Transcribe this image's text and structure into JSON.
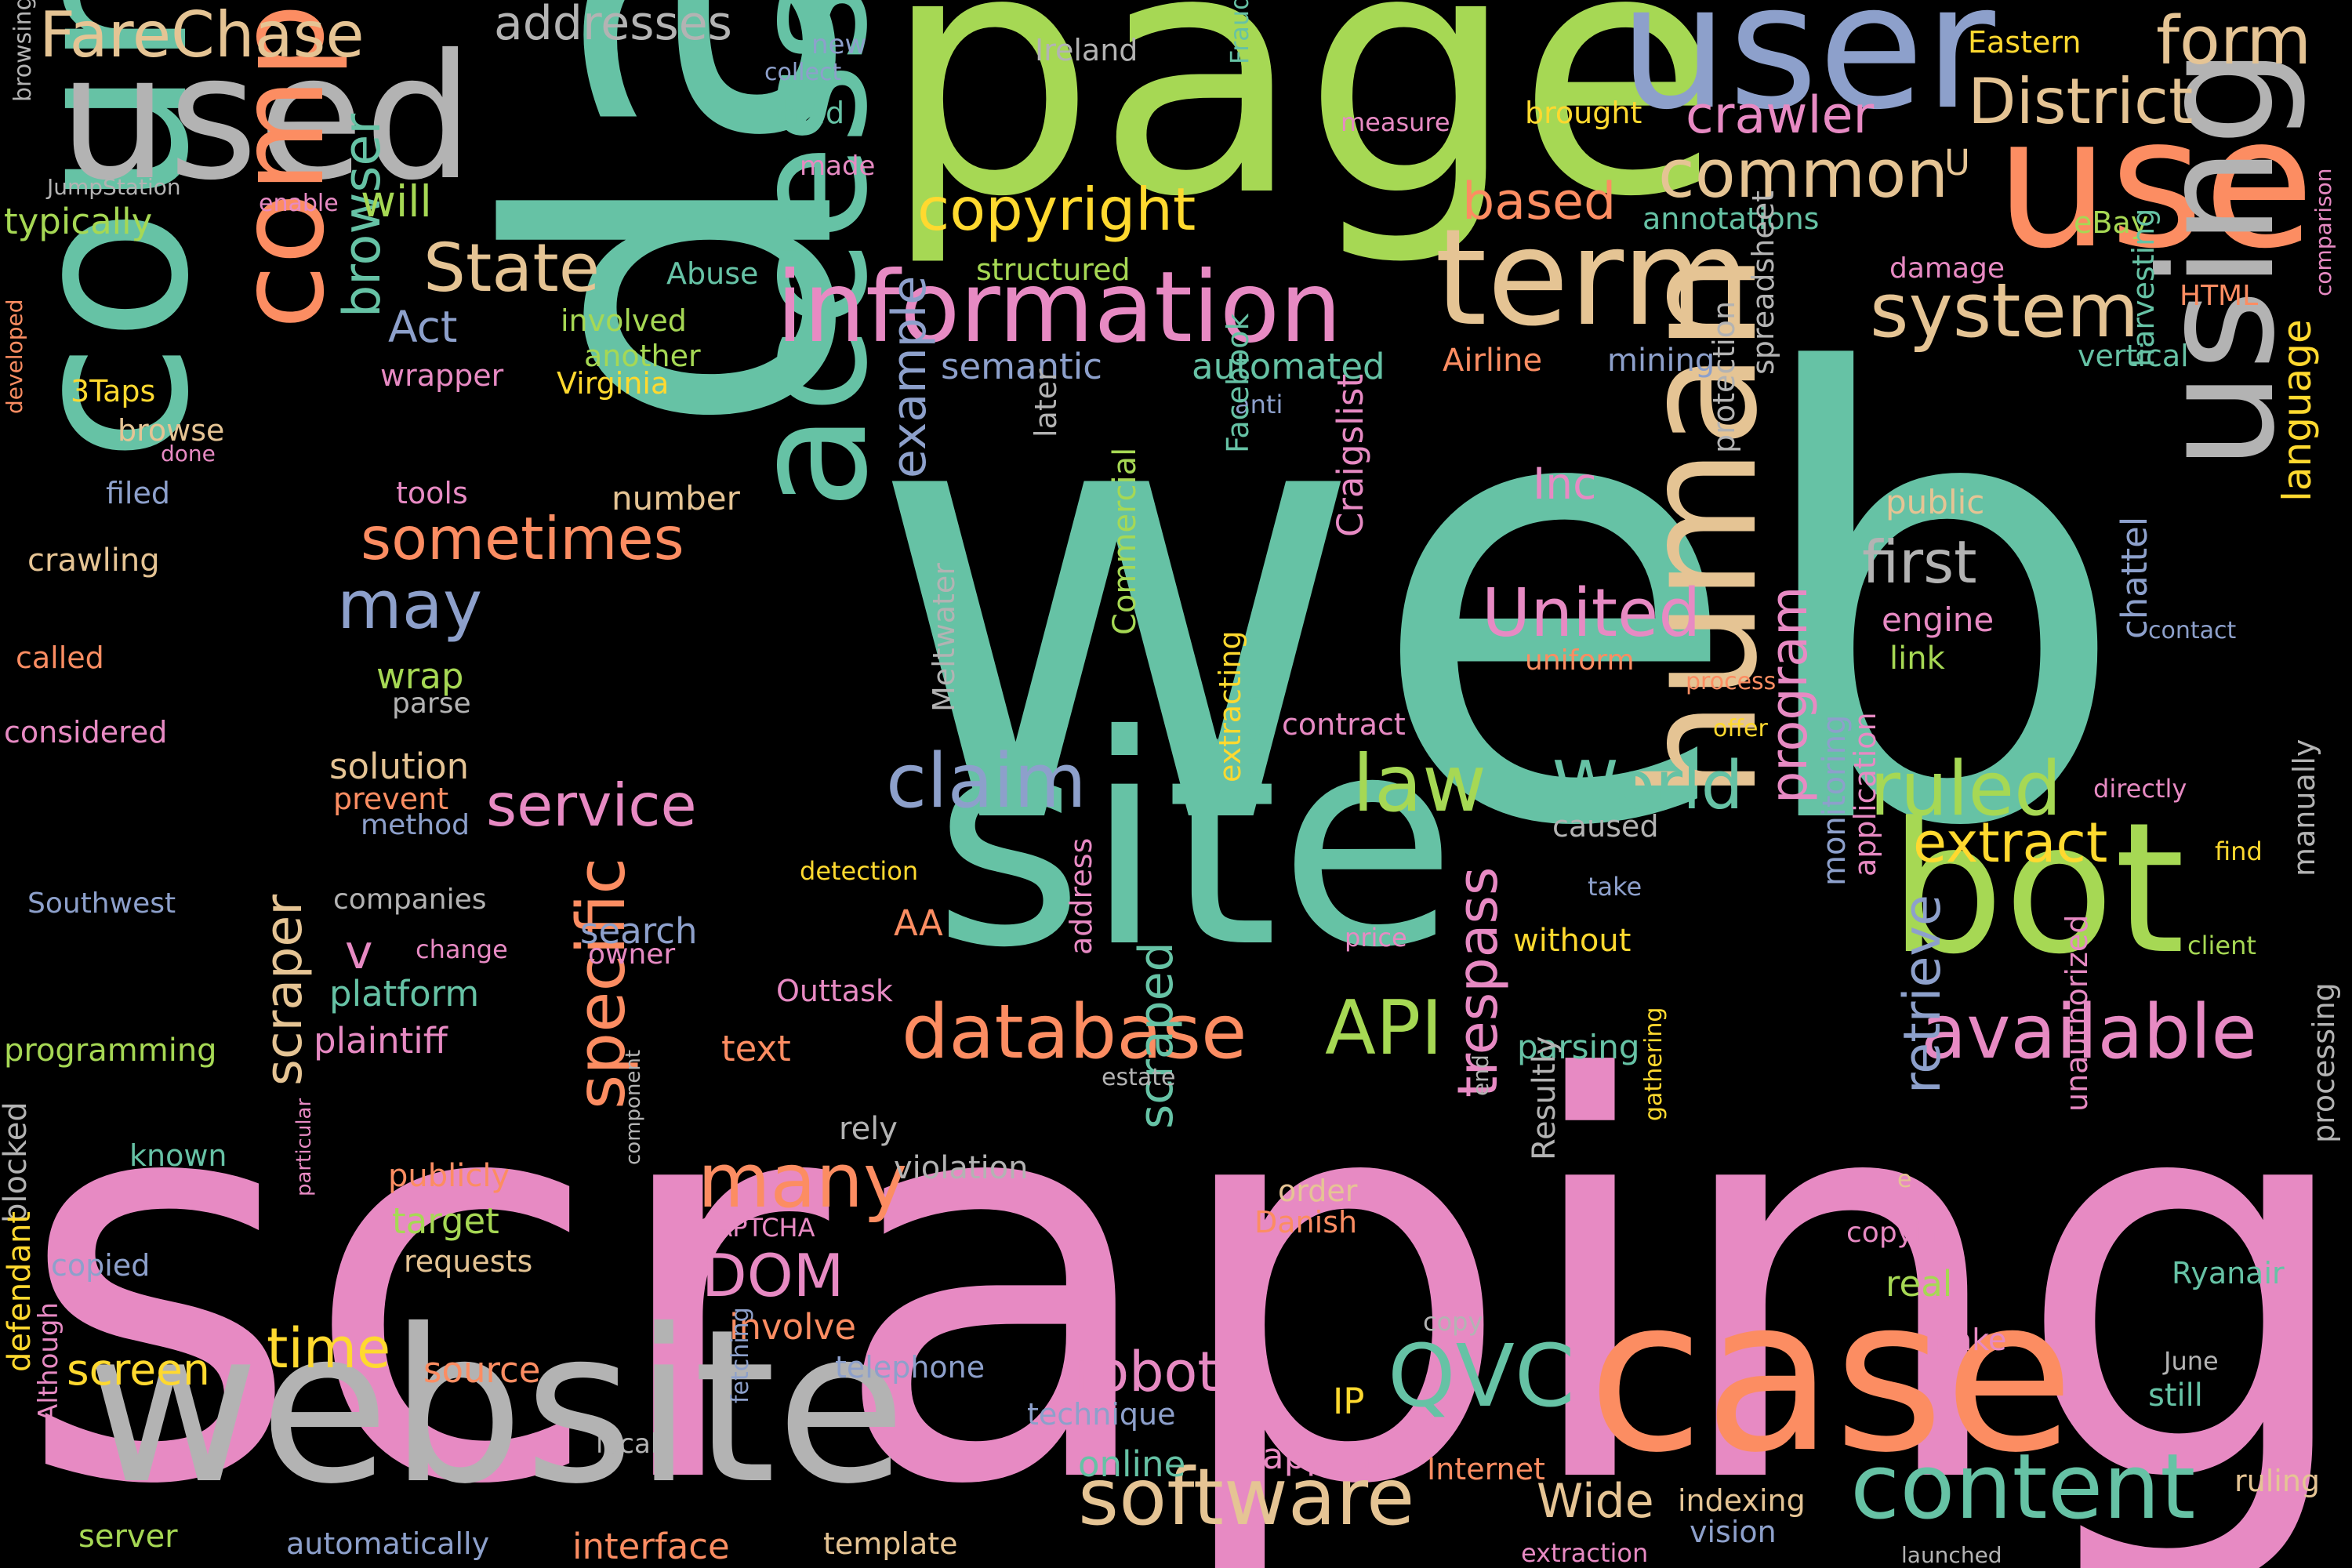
{
  "words": [
    {
      "text": "web",
      "w": 3.0,
      "color": "#66c2a5"
    },
    {
      "text": "scraping",
      "w": 2.6,
      "color": "#e78ac3"
    },
    {
      "text": "data",
      "w": 2.1,
      "color": "#66c2a5",
      "vertical": true
    },
    {
      "text": "page",
      "w": 1.7,
      "color": "#a6d854"
    },
    {
      "text": "site",
      "w": 1.4,
      "color": "#66c2a5"
    },
    {
      "text": "website",
      "w": 1.05,
      "color": "#b3b3b3"
    },
    {
      "text": "court",
      "w": 1.1,
      "color": "#66c2a5",
      "vertical": true
    },
    {
      "text": "case",
      "w": 1.05,
      "color": "#fc8d62"
    },
    {
      "text": "use",
      "w": 0.9,
      "color": "#fc8d62"
    },
    {
      "text": "user",
      "w": 0.9,
      "color": "#8da0cb"
    },
    {
      "text": "used",
      "w": 0.9,
      "color": "#b3b3b3"
    },
    {
      "text": "bot",
      "w": 0.9,
      "color": "#a6d854"
    },
    {
      "text": "access",
      "w": 0.85,
      "color": "#66c2a5",
      "vertical": true
    },
    {
      "text": "computer",
      "w": 0.72,
      "color": "#fc8d62",
      "vertical": true
    },
    {
      "text": "human",
      "w": 0.85,
      "color": "#e5c494",
      "vertical": true
    },
    {
      "text": "using",
      "w": 0.8,
      "color": "#b3b3b3",
      "vertical": true
    },
    {
      "text": "term",
      "w": 0.75,
      "color": "#e5c494"
    },
    {
      "text": "information",
      "w": 0.62,
      "color": "#e78ac3"
    },
    {
      "text": "content",
      "w": 0.62,
      "color": "#66c2a5"
    },
    {
      "text": "software",
      "w": 0.55,
      "color": "#e5c494"
    },
    {
      "text": "available",
      "w": 0.55,
      "color": "#e78ac3"
    },
    {
      "text": "database",
      "w": 0.55,
      "color": "#fc8d62"
    },
    {
      "text": "claim",
      "w": 0.55,
      "color": "#8da0cb"
    },
    {
      "text": "law",
      "w": 0.55,
      "color": "#a6d854"
    },
    {
      "text": "ruled",
      "w": 0.55,
      "color": "#a6d854"
    },
    {
      "text": "many",
      "w": 0.55,
      "color": "#fc8d62"
    },
    {
      "text": "API",
      "w": 0.55,
      "color": "#a6d854"
    },
    {
      "text": "QVC",
      "w": 0.55,
      "color": "#66c2a5"
    },
    {
      "text": "system",
      "w": 0.55,
      "color": "#e5c494"
    },
    {
      "text": "specific",
      "w": 0.5,
      "color": "#fc8d62",
      "vertical": true
    },
    {
      "text": "FareChase",
      "w": 0.45,
      "color": "#e5c494"
    },
    {
      "text": "District",
      "w": 0.45,
      "color": "#e5c494"
    },
    {
      "text": "form",
      "w": 0.45,
      "color": "#e5c494"
    },
    {
      "text": "common",
      "w": 0.45,
      "color": "#e5c494"
    },
    {
      "text": "State",
      "w": 0.45,
      "color": "#e5c494"
    },
    {
      "text": "World",
      "w": 0.45,
      "color": "#66c2a5"
    },
    {
      "text": "United",
      "w": 0.45,
      "color": "#e78ac3"
    },
    {
      "text": "may",
      "w": 0.45,
      "color": "#8da0cb"
    },
    {
      "text": "sometimes",
      "w": 0.45,
      "color": "#fc8d62"
    },
    {
      "text": "service",
      "w": 0.45,
      "color": "#e78ac3"
    },
    {
      "text": "copyright",
      "w": 0.45,
      "color": "#ffd92f"
    },
    {
      "text": "addresses",
      "w": 0.4,
      "color": "#b3b3b3"
    },
    {
      "text": "crawler",
      "w": 0.4,
      "color": "#e78ac3"
    },
    {
      "text": "based",
      "w": 0.4,
      "color": "#fc8d62"
    },
    {
      "text": "extract",
      "w": 0.45,
      "color": "#ffd92f"
    },
    {
      "text": "first",
      "w": 0.45,
      "color": "#b3b3b3"
    },
    {
      "text": "time",
      "w": 0.45,
      "color": "#ffd92f"
    },
    {
      "text": "robot",
      "w": 0.45,
      "color": "#e78ac3"
    },
    {
      "text": "DOM",
      "w": 0.45,
      "color": "#e78ac3"
    },
    {
      "text": "scraper",
      "w": 0.45,
      "color": "#e5c494",
      "vertical": true
    },
    {
      "text": "browser",
      "w": 0.4,
      "color": "#66c2a5",
      "vertical": true
    },
    {
      "text": "trespass",
      "w": 0.4,
      "color": "#e78ac3",
      "vertical": true
    },
    {
      "text": "program",
      "w": 0.4,
      "color": "#e78ac3",
      "vertical": true
    },
    {
      "text": "retrieve",
      "w": 0.4,
      "color": "#8da0cb",
      "vertical": true
    },
    {
      "text": "example",
      "w": 0.4,
      "color": "#8da0cb",
      "vertical": true
    },
    {
      "text": "scraped",
      "w": 0.4,
      "color": "#66c2a5",
      "vertical": true
    },
    {
      "text": "language",
      "w": 0.35,
      "color": "#ffd92f",
      "vertical": true
    },
    {
      "text": "Wide",
      "w": 0.4,
      "color": "#e5c494"
    },
    {
      "text": "screen",
      "w": 0.35,
      "color": "#ffd92f"
    },
    {
      "text": "will",
      "w": 0.35,
      "color": "#a6d854"
    },
    {
      "text": "Act",
      "w": 0.35,
      "color": "#8da0cb"
    },
    {
      "text": "Inc",
      "w": 0.35,
      "color": "#e78ac3"
    },
    {
      "text": "v",
      "w": 0.35,
      "color": "#e78ac3"
    },
    {
      "text": "IP",
      "w": 0.35,
      "color": "#ffd92f"
    },
    {
      "text": "U",
      "w": 0.3,
      "color": "#e5c494"
    },
    {
      "text": "platform",
      "w": 0.3,
      "color": "#66c2a5"
    },
    {
      "text": "plaintiff",
      "w": 0.3,
      "color": "#e78ac3"
    },
    {
      "text": "solution",
      "w": 0.3,
      "color": "#e5c494"
    },
    {
      "text": "automated",
      "w": 0.3,
      "color": "#66c2a5"
    },
    {
      "text": "semantic",
      "w": 0.3,
      "color": "#8da0cb"
    },
    {
      "text": "typically",
      "w": 0.28,
      "color": "#a6d854"
    },
    {
      "text": "involve",
      "w": 0.3,
      "color": "#fc8d62"
    },
    {
      "text": "source",
      "w": 0.3,
      "color": "#fc8d62"
    },
    {
      "text": "online",
      "w": 0.3,
      "color": "#66c2a5"
    },
    {
      "text": "appeal",
      "w": 0.3,
      "color": "#e78ac3"
    },
    {
      "text": "interface",
      "w": 0.3,
      "color": "#fc8d62"
    },
    {
      "text": "Airline",
      "w": 0.28,
      "color": "#fc8d62"
    },
    {
      "text": "mining",
      "w": 0.28,
      "color": "#8da0cb"
    },
    {
      "text": "crawling",
      "w": 0.28,
      "color": "#e5c494"
    },
    {
      "text": "search",
      "w": 0.3,
      "color": "#8da0cb"
    },
    {
      "text": "target",
      "w": 0.3,
      "color": "#a6d854"
    },
    {
      "text": "AA",
      "w": 0.3,
      "color": "#fc8d62"
    },
    {
      "text": "text",
      "w": 0.3,
      "color": "#fc8d62"
    },
    {
      "text": "public",
      "w": 0.28,
      "color": "#e5c494"
    },
    {
      "text": "engine",
      "w": 0.28,
      "color": "#e78ac3"
    },
    {
      "text": "link",
      "w": 0.28,
      "color": "#a6d854"
    },
    {
      "text": "wrap",
      "w": 0.28,
      "color": "#a6d854"
    },
    {
      "text": "tools",
      "w": 0.25,
      "color": "#e78ac3"
    },
    {
      "text": "number",
      "w": 0.28,
      "color": "#e5c494"
    },
    {
      "text": "vertical",
      "w": 0.25,
      "color": "#66c2a5"
    },
    {
      "text": "structured",
      "w": 0.25,
      "color": "#a6d854"
    },
    {
      "text": "annotations",
      "w": 0.25,
      "color": "#66c2a5"
    },
    {
      "text": "eBay",
      "w": 0.25,
      "color": "#a6d854"
    },
    {
      "text": "Eastern",
      "w": 0.25,
      "color": "#ffd92f"
    },
    {
      "text": "brought",
      "w": 0.25,
      "color": "#ffd92f"
    },
    {
      "text": "involved",
      "w": 0.25,
      "color": "#a6d854"
    },
    {
      "text": "another",
      "w": 0.25,
      "color": "#a6d854"
    },
    {
      "text": "Virginia",
      "w": 0.25,
      "color": "#ffd92f"
    },
    {
      "text": "3Taps",
      "w": 0.25,
      "color": "#ffd92f"
    },
    {
      "text": "browse",
      "w": 0.25,
      "color": "#e5c494"
    },
    {
      "text": "filed",
      "w": 0.25,
      "color": "#8da0cb"
    },
    {
      "text": "Abuse",
      "w": 0.25,
      "color": "#66c2a5"
    },
    {
      "text": "wrapper",
      "w": 0.25,
      "color": "#e78ac3"
    },
    {
      "text": "held",
      "w": 0.25,
      "color": "#66c2a5"
    },
    {
      "text": "Ireland",
      "w": 0.25,
      "color": "#b3b3b3"
    },
    {
      "text": "new",
      "w": 0.25,
      "color": "#8da0cb"
    },
    {
      "text": "made",
      "w": 0.25,
      "color": "#e78ac3"
    },
    {
      "text": "HTML",
      "w": 0.25,
      "color": "#fc8d62"
    },
    {
      "text": "damage",
      "w": 0.25,
      "color": "#e78ac3"
    },
    {
      "text": "uniform",
      "w": 0.25,
      "color": "#fc8d62"
    },
    {
      "text": "called",
      "w": 0.25,
      "color": "#fc8d62"
    },
    {
      "text": "considered",
      "w": 0.25,
      "color": "#e78ac3"
    },
    {
      "text": "prevent",
      "w": 0.25,
      "color": "#fc8d62"
    },
    {
      "text": "method",
      "w": 0.25,
      "color": "#8da0cb"
    },
    {
      "text": "parse",
      "w": 0.25,
      "color": "#b3b3b3"
    },
    {
      "text": "Southwest",
      "w": 0.25,
      "color": "#8da0cb"
    },
    {
      "text": "companies",
      "w": 0.25,
      "color": "#b3b3b3"
    },
    {
      "text": "change",
      "w": 0.22,
      "color": "#e78ac3"
    },
    {
      "text": "owner",
      "w": 0.25,
      "color": "#e78ac3"
    },
    {
      "text": "programming",
      "w": 0.25,
      "color": "#a6d854"
    },
    {
      "text": "known",
      "w": 0.25,
      "color": "#66c2a5"
    },
    {
      "text": "publicly",
      "w": 0.25,
      "color": "#fc8d62"
    },
    {
      "text": "requests",
      "w": 0.25,
      "color": "#e5c494"
    },
    {
      "text": "copied",
      "w": 0.25,
      "color": "#8da0cb"
    },
    {
      "text": "rely",
      "w": 0.25,
      "color": "#b3b3b3"
    },
    {
      "text": "violation",
      "w": 0.25,
      "color": "#b3b3b3"
    },
    {
      "text": "order",
      "w": 0.25,
      "color": "#e5c494"
    },
    {
      "text": "Danish",
      "w": 0.25,
      "color": "#fc8d62"
    },
    {
      "text": "CAPTCHA",
      "w": 0.22,
      "color": "#e78ac3"
    },
    {
      "text": "telephone",
      "w": 0.25,
      "color": "#8da0cb"
    },
    {
      "text": "technique",
      "w": 0.25,
      "color": "#8da0cb"
    },
    {
      "text": "local",
      "w": 0.22,
      "color": "#b3b3b3"
    },
    {
      "text": "server",
      "w": 0.25,
      "color": "#a6d854"
    },
    {
      "text": "automatically",
      "w": 0.25,
      "color": "#8da0cb"
    },
    {
      "text": "template",
      "w": 0.25,
      "color": "#e5c494"
    },
    {
      "text": "Internet",
      "w": 0.25,
      "color": "#fc8d62"
    },
    {
      "text": "indexing",
      "w": 0.25,
      "color": "#e5c494"
    },
    {
      "text": "vision",
      "w": 0.25,
      "color": "#8da0cb"
    },
    {
      "text": "extraction",
      "w": 0.22,
      "color": "#e78ac3"
    },
    {
      "text": "launched",
      "w": 0.2,
      "color": "#b3b3b3"
    },
    {
      "text": "ruling",
      "w": 0.25,
      "color": "#e5c494"
    },
    {
      "text": "Ryanair",
      "w": 0.25,
      "color": "#66c2a5"
    },
    {
      "text": "still",
      "w": 0.25,
      "color": "#66c2a5"
    },
    {
      "text": "June",
      "w": 0.22,
      "color": "#b3b3b3"
    },
    {
      "text": "make",
      "w": 0.25,
      "color": "#e78ac3"
    },
    {
      "text": "real",
      "w": 0.28,
      "color": "#a6d854"
    },
    {
      "text": "copying",
      "w": 0.25,
      "color": "#e78ac3"
    },
    {
      "text": "without",
      "w": 0.25,
      "color": "#ffd92f"
    },
    {
      "text": "price",
      "w": 0.22,
      "color": "#e78ac3"
    },
    {
      "text": "take",
      "w": 0.22,
      "color": "#8da0cb"
    },
    {
      "text": "caused",
      "w": 0.25,
      "color": "#b3b3b3"
    },
    {
      "text": "parsing",
      "w": 0.25,
      "color": "#66c2a5"
    },
    {
      "text": "directly",
      "w": 0.22,
      "color": "#e78ac3"
    },
    {
      "text": "find",
      "w": 0.22,
      "color": "#ffd92f"
    },
    {
      "text": "client",
      "w": 0.22,
      "color": "#a6d854"
    },
    {
      "text": "contract",
      "w": 0.25,
      "color": "#e78ac3"
    },
    {
      "text": "offer",
      "w": 0.22,
      "color": "#ffd92f"
    },
    {
      "text": "process",
      "w": 0.22,
      "color": "#fc8d62"
    },
    {
      "text": "contact",
      "w": 0.22,
      "color": "#8da0cb"
    },
    {
      "text": "estate",
      "w": 0.22,
      "color": "#b3b3b3"
    },
    {
      "text": "detection",
      "w": 0.22,
      "color": "#ffd92f"
    },
    {
      "text": "e",
      "w": 0.22,
      "color": "#e5c494"
    },
    {
      "text": "copy",
      "w": 0.22,
      "color": "#b3b3b3"
    },
    {
      "text": "anti",
      "w": 0.22,
      "color": "#8da0cb"
    },
    {
      "text": "measure",
      "w": 0.22,
      "color": "#e78ac3"
    },
    {
      "text": "collect",
      "w": 0.2,
      "color": "#8da0cb"
    },
    {
      "text": "JumpStation",
      "w": 0.2,
      "color": "#b3b3b3"
    },
    {
      "text": "enable",
      "w": 0.2,
      "color": "#e78ac3"
    },
    {
      "text": "done",
      "w": 0.2,
      "color": "#e78ac3"
    },
    {
      "text": "Fraud",
      "w": 0.2,
      "color": "#66c2a5",
      "vertical": true
    },
    {
      "text": "browsing",
      "w": 0.2,
      "color": "#b3b3b3",
      "vertical": true
    },
    {
      "text": "developed",
      "w": 0.2,
      "color": "#fc8d62",
      "vertical": true
    },
    {
      "text": "blocked",
      "w": 0.25,
      "color": "#b3b3b3",
      "vertical": true
    },
    {
      "text": "defendant",
      "w": 0.25,
      "color": "#ffd92f",
      "vertical": true
    },
    {
      "text": "Although",
      "w": 0.22,
      "color": "#e78ac3",
      "vertical": true
    },
    {
      "text": "particular",
      "w": 0.18,
      "color": "#e78ac3",
      "vertical": true
    },
    {
      "text": "component",
      "w": 0.18,
      "color": "#b3b3b3",
      "vertical": true
    },
    {
      "text": "fetching",
      "w": 0.2,
      "color": "#8da0cb",
      "vertical": true
    },
    {
      "text": "Meltwater",
      "w": 0.25,
      "color": "#b3b3b3",
      "vertical": true
    },
    {
      "text": "Commercial",
      "w": 0.25,
      "color": "#a6d854",
      "vertical": true
    },
    {
      "text": "extracting",
      "w": 0.25,
      "color": "#ffd92f",
      "vertical": true
    },
    {
      "text": "collecting",
      "w": 0.2,
      "color": "#66c2a5",
      "vertical": true
    },
    {
      "text": "address",
      "w": 0.25,
      "color": "#e78ac3",
      "vertical": true
    },
    {
      "text": "Facebook",
      "w": 0.25,
      "color": "#66c2a5",
      "vertical": true
    },
    {
      "text": "later",
      "w": 0.25,
      "color": "#b3b3b3",
      "vertical": true
    },
    {
      "text": "Craigslist",
      "w": 0.28,
      "color": "#e78ac3",
      "vertical": true
    },
    {
      "text": "protection",
      "w": 0.25,
      "color": "#b3b3b3",
      "vertical": true
    },
    {
      "text": "spreadsheet",
      "w": 0.25,
      "color": "#b3b3b3",
      "vertical": true
    },
    {
      "text": "end",
      "w": 0.2,
      "color": "#b3b3b3",
      "vertical": true
    },
    {
      "text": "Resultly",
      "w": 0.25,
      "color": "#b3b3b3",
      "vertical": true
    },
    {
      "text": "gathering",
      "w": 0.2,
      "color": "#ffd92f",
      "vertical": true
    },
    {
      "text": "Outtask",
      "w": 0.25,
      "color": "#e78ac3"
    },
    {
      "text": "monitoring",
      "w": 0.25,
      "color": "#8da0cb",
      "vertical": true
    },
    {
      "text": "application",
      "w": 0.25,
      "color": "#e78ac3",
      "vertical": true
    },
    {
      "text": "chattel",
      "w": 0.28,
      "color": "#8da0cb",
      "vertical": true
    },
    {
      "text": "harvesting",
      "w": 0.25,
      "color": "#66c2a5",
      "vertical": true
    },
    {
      "text": "manually",
      "w": 0.25,
      "color": "#b3b3b3",
      "vertical": true
    },
    {
      "text": "unauthorized",
      "w": 0.25,
      "color": "#e78ac3",
      "vertical": true
    },
    {
      "text": "processing",
      "w": 0.25,
      "color": "#b3b3b3",
      "vertical": true
    },
    {
      "text": "comparison",
      "w": 0.2,
      "color": "#e78ac3",
      "vertical": true
    }
  ]
}
